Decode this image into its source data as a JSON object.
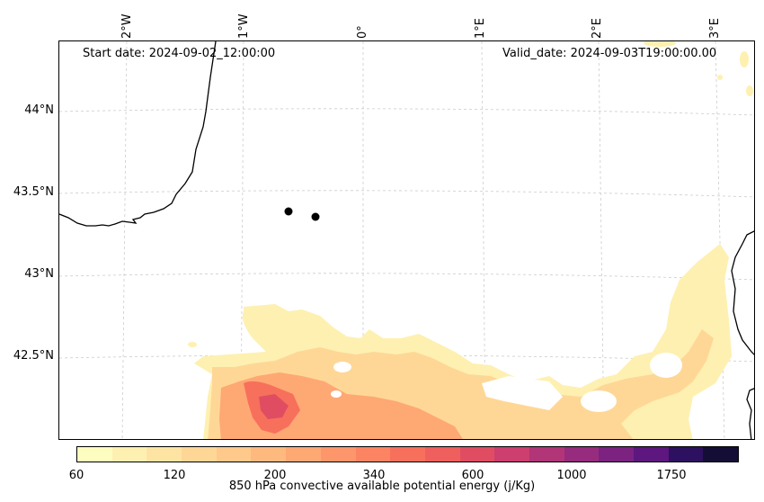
{
  "map": {
    "start_date": "Start date: 2024-09-02_12:00:00",
    "valid_date": "Valid_date: 2024-09-03T19:00:00.00",
    "lat_labels": [
      "44°N",
      "43.5°N",
      "43°N",
      "42.5°N"
    ],
    "lon_labels": [
      "2°W",
      "1°W",
      "0°",
      "1°E",
      "2°E",
      "3°E"
    ],
    "gridlines": "dashed light gray",
    "markers": 2
  },
  "colorbar": {
    "label": "850 hPa convective available potential energy (j/Kg)",
    "ticks": [
      "60",
      "120",
      "200",
      "340",
      "600",
      "1000",
      "1750"
    ],
    "colors": [
      "#fcfdbf",
      "#fef0b0",
      "#fee4a3",
      "#fed796",
      "#fec98a",
      "#feb97f",
      "#fea874",
      "#fe966b",
      "#fd8462",
      "#f7705c",
      "#ef5f5d",
      "#e04d63",
      "#cc3f6e",
      "#b23577",
      "#972c7e",
      "#7c2382",
      "#5d177f",
      "#2d1160",
      "#140e36"
    ]
  }
}
